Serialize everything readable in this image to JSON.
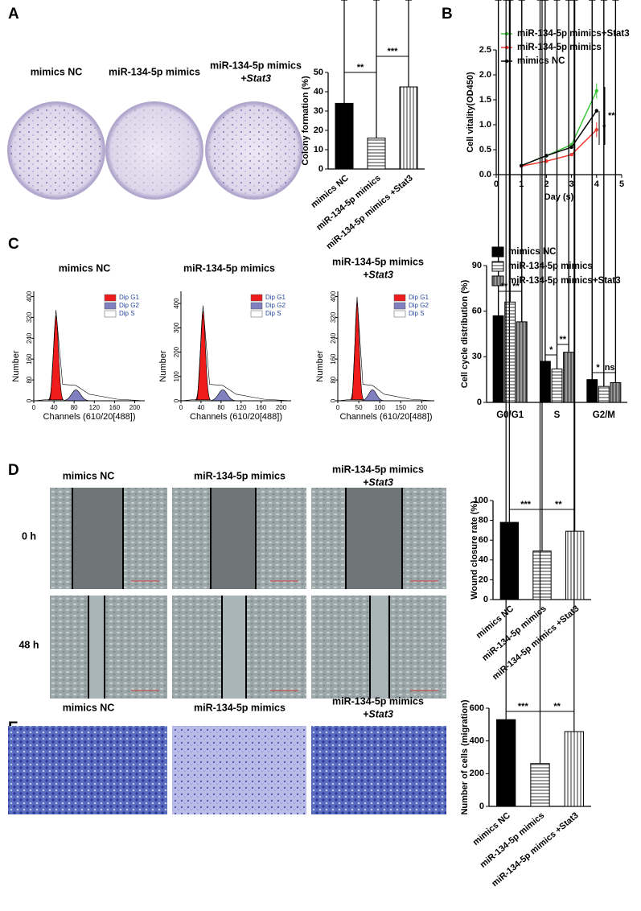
{
  "figure": {
    "A": {
      "label": "A",
      "captions": [
        [
          "mimics NC"
        ],
        [
          "miR-134-5p mimics"
        ],
        [
          "miR-134-5p mimics",
          "+Stat3"
        ]
      ]
    },
    "B": {
      "label": "B"
    },
    "C": {
      "label": "C",
      "captions": [
        [
          "mimics NC"
        ],
        [
          "miR-134-5p mimics"
        ],
        [
          "miR-134-5p mimics",
          "+Stat3"
        ]
      ]
    },
    "D": {
      "label": "D",
      "captions": [
        [
          "mimics NC"
        ],
        [
          "miR-134-5p mimics"
        ],
        [
          "miR-134-5p mimics",
          "+Stat3"
        ]
      ],
      "rows": [
        "0 h",
        "48 h"
      ]
    },
    "E": {
      "label": "E",
      "captions": [
        [
          "mimics NC"
        ],
        [
          "miR-134-5p mimics"
        ],
        [
          "miR-134-5p mimics",
          "+Stat3"
        ]
      ]
    }
  },
  "chart_data": [
    {
      "type": "bar",
      "ylabel": "Colony formation (%)",
      "categories": [
        "mimics NC",
        "miR-134-5p mimics",
        "miR-134-5p mimics +Stat3"
      ],
      "values": [
        34,
        16,
        42.5
      ],
      "errors": [
        3.5,
        3,
        3
      ],
      "color": "#000000",
      "bar_patterns": [
        "solid",
        "horizontal",
        "vertical"
      ],
      "ylim": [
        0,
        50
      ],
      "yticks": [
        0,
        10,
        20,
        30,
        40,
        50
      ],
      "annotations": [
        "**",
        "***"
      ]
    },
    {
      "type": "line",
      "xlabel": "Day (s)",
      "ylabel": "Cell vitality(OD450)",
      "x": [
        1,
        2,
        3,
        4
      ],
      "xlim": [
        0,
        5
      ],
      "xticks": [
        0,
        1,
        2,
        3,
        4,
        5
      ],
      "ylim": [
        0,
        2.5
      ],
      "yticks": [
        {
          "value": 0,
          "label": "0.0"
        },
        0.5,
        {
          "value": 1,
          "label": "1.0"
        },
        1.5,
        {
          "value": 2,
          "label": "2.0"
        },
        2.5
      ],
      "series": [
        {
          "name": "miR-134-5p mimics+Stat3",
          "color": "#3cc43c",
          "values": [
            0.18,
            0.38,
            0.6,
            1.68
          ],
          "errors": [
            0.02,
            0.02,
            0.04,
            0.15
          ]
        },
        {
          "name": "miR-134-5p mimics",
          "color": "#f03c32",
          "values": [
            0.17,
            0.27,
            0.4,
            0.9
          ],
          "errors": [
            0.01,
            0.02,
            0.02,
            0.15
          ]
        },
        {
          "name": "mimics NC",
          "color": "#000000",
          "values": [
            0.18,
            0.38,
            0.55,
            1.28
          ],
          "errors": [
            0.01,
            0.02,
            0.02,
            0.04
          ]
        }
      ],
      "annotations": [
        "*",
        "**"
      ]
    },
    {
      "type": "flow",
      "xlabel": "Channels (610/20[488])",
      "ylabel": "Number",
      "xlim": [
        0,
        220
      ],
      "xticks": [
        0,
        40,
        80,
        120,
        160,
        200
      ],
      "ylim": [
        0,
        420
      ],
      "yticks": [
        0,
        80,
        160,
        240,
        320,
        400
      ],
      "legend": [
        {
          "name": "Dip G1",
          "color": "#ee1c1c"
        },
        {
          "name": "Dip G2",
          "color": "#8080c0"
        },
        {
          "name": "Dip S",
          "color": "#ffffff"
        }
      ]
    },
    {
      "type": "flow",
      "xlabel": "Channels (610/20[488])",
      "ylabel": "Number",
      "xlim": [
        0,
        220
      ],
      "xticks": [
        0,
        40,
        80,
        120,
        160,
        200
      ],
      "ylim": [
        0,
        450
      ],
      "yticks": [
        0,
        100,
        200,
        300,
        400
      ],
      "legend": [
        {
          "name": "Dip G1",
          "color": "#ee1c1c"
        },
        {
          "name": "Dip G2",
          "color": "#8080c0"
        },
        {
          "name": "Dip S",
          "color": "#ffffff"
        }
      ]
    },
    {
      "type": "flow",
      "xlabel": "Channels (610/20[488])",
      "ylabel": "Number",
      "xlim": [
        0,
        230
      ],
      "xticks": [
        0,
        50,
        100,
        150,
        200
      ],
      "ylim": [
        0,
        420
      ],
      "yticks": [
        0,
        80,
        160,
        240,
        320,
        400
      ],
      "legend": [
        {
          "name": "Dip G1",
          "color": "#ee1c1c"
        },
        {
          "name": "Dip G2",
          "color": "#8080c0"
        },
        {
          "name": "Dip S",
          "color": "#ffffff"
        }
      ]
    },
    {
      "type": "bar",
      "ylabel": "Cell cycle distribution (%)",
      "categories": [
        "G0/G1",
        "S",
        "G2/M"
      ],
      "series": [
        {
          "name": "mimics NC",
          "color": "#000000",
          "pattern": "solid",
          "values": [
            57,
            27,
            15
          ],
          "errors": [
            1,
            1,
            1
          ]
        },
        {
          "name": "miR-134-5p mimics",
          "color": "#000000",
          "pattern": "horizontal",
          "values": [
            66,
            22,
            10.5
          ],
          "errors": [
            3,
            2,
            1.5
          ]
        },
        {
          "name": "miR-134-5p mimics+Stat3",
          "color": "#000000",
          "pattern": "vertical-gray",
          "values": [
            53,
            33,
            13
          ],
          "errors": [
            2,
            3,
            1.5
          ]
        }
      ],
      "ylim": [
        0,
        90
      ],
      "yticks": [
        0,
        30,
        60,
        90
      ],
      "annotations": [
        "**",
        "**",
        "*",
        "**",
        "*",
        "ns"
      ]
    },
    {
      "type": "bar",
      "ylabel": "Wound closure rate (%)",
      "categories": [
        "mimics NC",
        "miR-134-5p mimics",
        "miR-134-5p mimics +Stat3"
      ],
      "values": [
        78,
        49,
        69
      ],
      "errors": [
        3,
        3,
        3
      ],
      "color": "#000000",
      "bar_patterns": [
        "solid",
        "horizontal",
        "vertical"
      ],
      "ylim": [
        0,
        100
      ],
      "yticks": [
        0,
        20,
        40,
        60,
        80,
        100
      ],
      "annotations": [
        "***",
        "**"
      ]
    },
    {
      "type": "bar",
      "ylabel": "Number of cells (migration)",
      "categories": [
        "mimics NC",
        "miR-134-5p mimics",
        "miR-134-5p mimics +Stat3"
      ],
      "values": [
        530,
        262,
        457
      ],
      "errors": [
        35,
        20,
        25
      ],
      "color": "#000000",
      "bar_patterns": [
        "solid",
        "horizontal",
        "vertical"
      ],
      "ylim": [
        0,
        600
      ],
      "yticks": [
        0,
        200,
        400,
        600
      ],
      "annotations": [
        "***",
        "**"
      ]
    }
  ]
}
